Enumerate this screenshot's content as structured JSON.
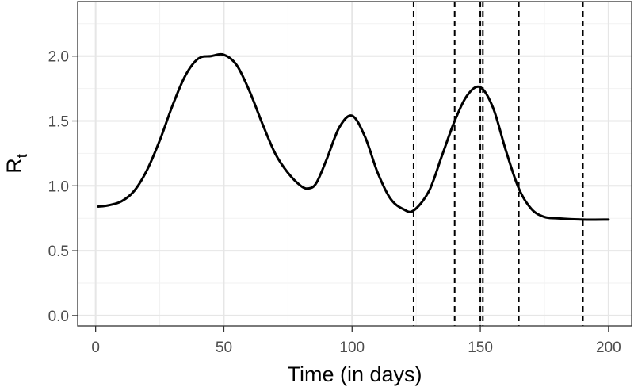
{
  "chart_data": {
    "type": "line",
    "title": "",
    "xlabel": "Time (in days)",
    "ylabel": {
      "main": "R",
      "subscript": "t"
    },
    "xlim": [
      -7,
      209
    ],
    "ylim": [
      -0.08,
      2.42
    ],
    "x_ticks": [
      0,
      50,
      100,
      150,
      200
    ],
    "x_tick_labels": [
      "0",
      "50",
      "100",
      "150",
      "200"
    ],
    "y_ticks": [
      0.0,
      0.5,
      1.0,
      1.5,
      2.0
    ],
    "y_tick_labels": [
      "0.0",
      "0.5",
      "1.0",
      "1.5",
      "2.0"
    ],
    "grid": true,
    "theme": "bw",
    "series": [
      {
        "color": "#000000",
        "x": [
          1,
          5,
          10,
          15,
          20,
          25,
          30,
          35,
          40,
          45,
          50,
          55,
          60,
          65,
          70,
          75,
          80,
          83,
          86,
          90,
          95,
          100,
          105,
          110,
          115,
          120,
          124,
          130,
          135,
          140,
          145,
          150,
          155,
          160,
          165,
          170,
          175,
          180,
          190,
          200
        ],
        "y": [
          0.84,
          0.85,
          0.88,
          0.96,
          1.12,
          1.35,
          1.62,
          1.85,
          1.98,
          2.0,
          2.01,
          1.93,
          1.73,
          1.48,
          1.25,
          1.1,
          1.0,
          0.98,
          1.02,
          1.2,
          1.45,
          1.54,
          1.38,
          1.1,
          0.9,
          0.82,
          0.81,
          0.96,
          1.23,
          1.5,
          1.7,
          1.76,
          1.6,
          1.27,
          0.98,
          0.82,
          0.76,
          0.75,
          0.74,
          0.74
        ]
      }
    ],
    "vlines": {
      "x": [
        124,
        140,
        150,
        151,
        165,
        190
      ],
      "style": "dashed",
      "color": "#000000"
    }
  }
}
